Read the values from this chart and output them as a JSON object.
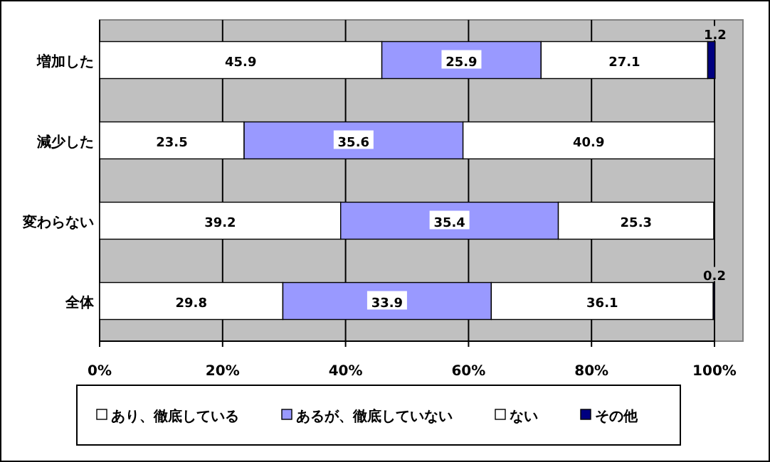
{
  "chart_data": {
    "type": "bar",
    "orientation": "horizontal",
    "stacked": true,
    "categories": [
      "増加した",
      "減少した",
      "変わらない",
      "全体"
    ],
    "series": [
      {
        "name": "あり、徹底している",
        "color": "#ffffff",
        "values": [
          45.9,
          23.5,
          39.2,
          29.8
        ],
        "value_labels": [
          "45.9",
          "23.5",
          "39.2",
          "29.8"
        ]
      },
      {
        "name": "あるが、徹底していない",
        "color": "#9999ff",
        "values": [
          25.9,
          35.6,
          35.4,
          33.9
        ],
        "value_labels": [
          "25.9",
          "35.6",
          "35.4",
          "33.9"
        ]
      },
      {
        "name": "ない",
        "color": "#ffffff",
        "values": [
          27.1,
          40.9,
          25.3,
          36.1
        ],
        "value_labels": [
          "27.1",
          "40.9",
          "25.3",
          "36.1"
        ]
      },
      {
        "name": "その他",
        "color": "#000080",
        "values": [
          1.2,
          0,
          0.1,
          0.2
        ],
        "value_labels": [
          "1.2",
          null,
          null,
          "0.2"
        ]
      }
    ],
    "xlim": [
      0,
      100
    ],
    "xticks": [
      {
        "value": 0,
        "label": "0%"
      },
      {
        "value": 20,
        "label": "20%"
      },
      {
        "value": 40,
        "label": "40%"
      },
      {
        "value": 60,
        "label": "60%"
      },
      {
        "value": 80,
        "label": "80%"
      },
      {
        "value": 100,
        "label": "100%"
      }
    ],
    "grid": "x",
    "legend": "bottom"
  }
}
